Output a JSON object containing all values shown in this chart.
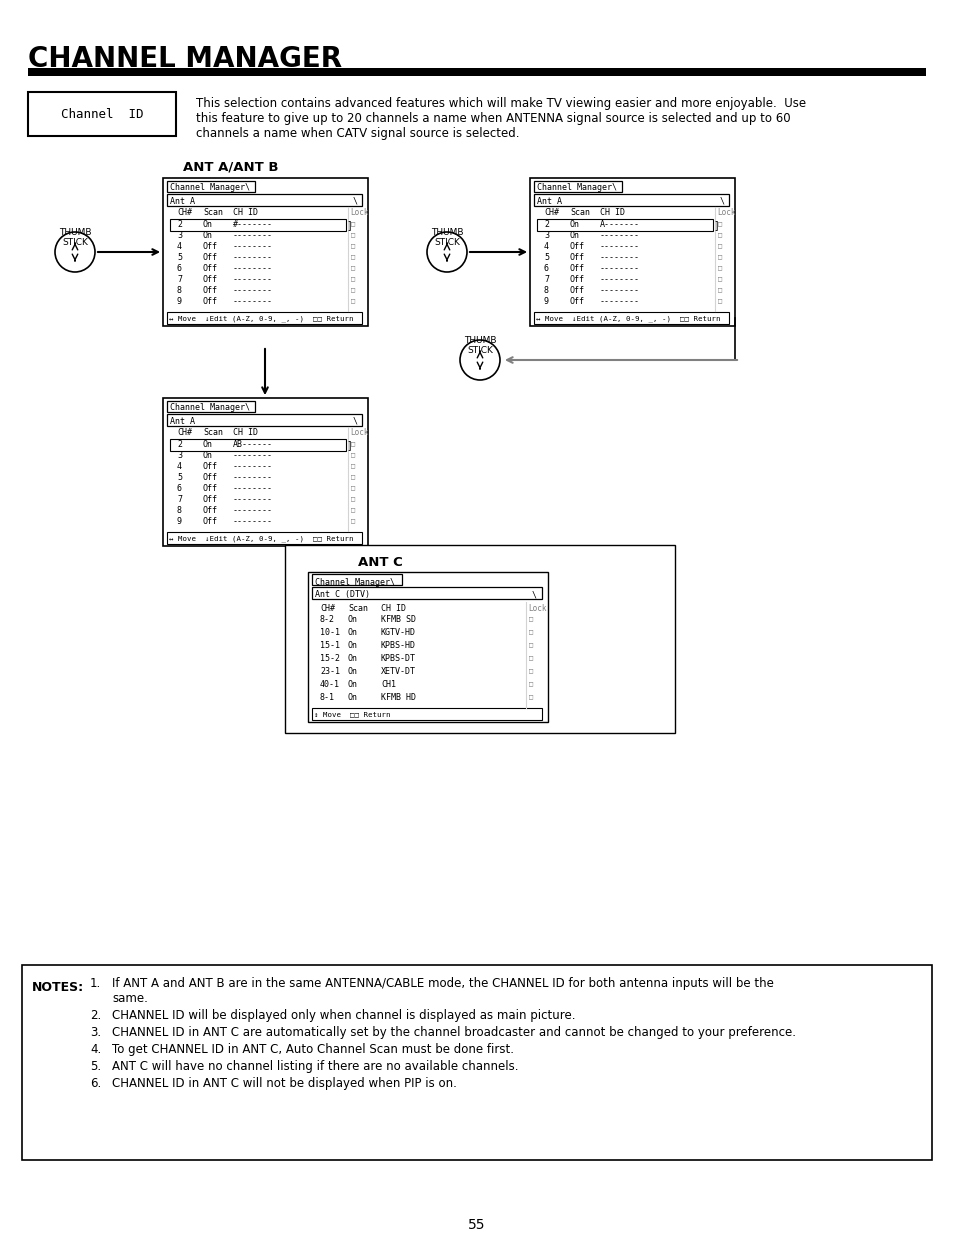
{
  "title": "CHANNEL MANAGER",
  "channel_id_label": "Channel  ID",
  "channel_id_desc_lines": [
    "This selection contains advanced features which will make TV viewing easier and more enjoyable.  Use",
    "this feature to give up to 20 channels a name when ANTENNA signal source is selected and up to 60",
    "channels a name when CATV signal source is selected."
  ],
  "ant_ab_title": "ANT A/ANT B",
  "ant_c_title": "ANT C",
  "notes_title": "NOTES:",
  "note1_line1": "If ANT A and ANT B are in the same ANTENNA/CABLE mode, the CHANNEL ID for both antenna inputs will be the",
  "note1_line2": "same.",
  "notes_rest": [
    "CHANNEL ID will be displayed only when channel is displayed as main picture.",
    "CHANNEL ID in ANT C are automatically set by the channel broadcaster and cannot be changed to your preference.",
    "To get CHANNEL ID in ANT C, Auto Channel Scan must be done first.",
    "ANT C will have no channel listing if there are no available channels.",
    "CHANNEL ID in ANT C will not be displayed when PIP is on."
  ],
  "page_num": "55",
  "screen1_rows": [
    [
      "2",
      "On",
      "#-------"
    ],
    [
      "3",
      "On",
      "--------"
    ],
    [
      "4",
      "Off",
      "--------"
    ],
    [
      "5",
      "Off",
      "--------"
    ],
    [
      "6",
      "Off",
      "--------"
    ],
    [
      "7",
      "Off",
      "--------"
    ],
    [
      "8",
      "Off",
      "--------"
    ],
    [
      "9",
      "Off",
      "--------"
    ]
  ],
  "screen2_rows": [
    [
      "2",
      "On",
      "A-------"
    ],
    [
      "3",
      "On",
      "--------"
    ],
    [
      "4",
      "Off",
      "--------"
    ],
    [
      "5",
      "Off",
      "--------"
    ],
    [
      "6",
      "Off",
      "--------"
    ],
    [
      "7",
      "Off",
      "--------"
    ],
    [
      "8",
      "Off",
      "--------"
    ],
    [
      "9",
      "Off",
      "--------"
    ]
  ],
  "screen3_rows": [
    [
      "2",
      "On",
      "AB------"
    ],
    [
      "3",
      "On",
      "--------"
    ],
    [
      "4",
      "Off",
      "--------"
    ],
    [
      "5",
      "Off",
      "--------"
    ],
    [
      "6",
      "Off",
      "--------"
    ],
    [
      "7",
      "Off",
      "--------"
    ],
    [
      "8",
      "Off",
      "--------"
    ],
    [
      "9",
      "Off",
      "--------"
    ]
  ],
  "antc_rows": [
    [
      "8-2",
      "On",
      "KFMB SD"
    ],
    [
      "10-1",
      "On",
      "KGTV-HD"
    ],
    [
      "15-1",
      "On",
      "KPBS-HD"
    ],
    [
      "15-2",
      "On",
      "KPBS-DT"
    ],
    [
      "23-1",
      "On",
      "XETV-DT"
    ],
    [
      "40-1",
      "On",
      "CH1"
    ],
    [
      "8-1",
      "On",
      "KFMB HD"
    ]
  ],
  "footer_ab": "↔ Move  ↓Edit (A-Z, 0-9, _, -)  □□ Return",
  "footer_c": "↕ Move  □□ Return"
}
